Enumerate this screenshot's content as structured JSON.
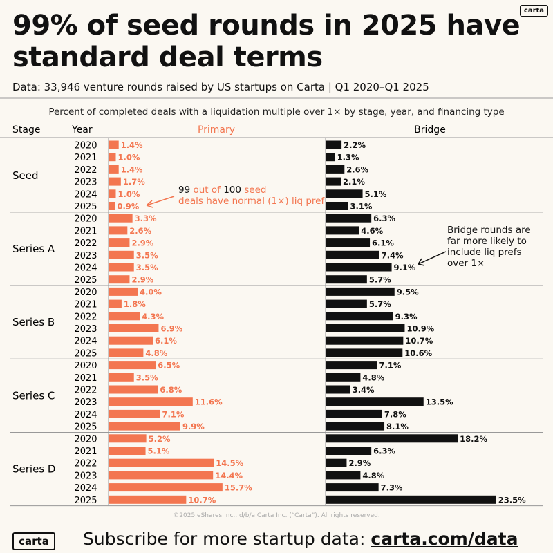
{
  "header": {
    "logo": "carta",
    "title": "99% of seed rounds in 2025 have standard deal terms",
    "subtitle": "Data: 33,946 venture rounds raised by US startups on Carta | Q1 2020–Q1 2025"
  },
  "colors": {
    "primary": "#f37650",
    "bridge": "#111111",
    "background": "#fbf8f2"
  },
  "chart_data": {
    "type": "bar",
    "title": "Percent of completed deals with a liquidation multiple over 1× by stage, year, and financing type",
    "column_headers": {
      "stage": "Stage",
      "year": "Year"
    },
    "unit": "%",
    "series": [
      {
        "name": "Primary",
        "values": [
          1.4,
          1.0,
          1.4,
          1.7,
          1.0,
          0.9,
          3.3,
          2.6,
          2.9,
          3.5,
          3.5,
          2.9,
          4.0,
          1.8,
          4.3,
          6.9,
          6.1,
          4.8,
          6.5,
          3.5,
          6.8,
          11.6,
          7.1,
          9.9,
          5.2,
          5.1,
          14.5,
          14.4,
          15.7,
          10.7
        ]
      },
      {
        "name": "Bridge",
        "values": [
          2.2,
          1.3,
          2.6,
          2.1,
          5.1,
          3.1,
          6.3,
          4.6,
          6.1,
          7.4,
          9.1,
          5.7,
          9.5,
          5.7,
          9.3,
          10.9,
          10.7,
          10.6,
          7.1,
          4.8,
          3.4,
          13.5,
          7.8,
          8.1,
          18.2,
          6.3,
          2.9,
          4.8,
          7.3,
          23.5
        ]
      }
    ],
    "groups": [
      {
        "stage": "Seed",
        "years": [
          "2020",
          "2021",
          "2022",
          "2023",
          "2024",
          "2025"
        ]
      },
      {
        "stage": "Series A",
        "years": [
          "2020",
          "2021",
          "2022",
          "2023",
          "2024",
          "2025"
        ]
      },
      {
        "stage": "Series B",
        "years": [
          "2020",
          "2021",
          "2022",
          "2023",
          "2024",
          "2025"
        ]
      },
      {
        "stage": "Series C",
        "years": [
          "2020",
          "2021",
          "2022",
          "2023",
          "2024",
          "2025"
        ]
      },
      {
        "stage": "Series D",
        "years": [
          "2020",
          "2021",
          "2022",
          "2023",
          "2024",
          "2025"
        ]
      }
    ],
    "annotations": [
      {
        "text": "99 out of 100 seed deals have normal (1×) liq pref",
        "target": "Primary, Seed, 2025"
      },
      {
        "text": "Bridge rounds are far more likely to include liq prefs over 1×",
        "target": "Bridge, Series A, 2024"
      }
    ],
    "copyright": "©2025 eShares Inc., d/b/a Carta Inc. (“Carta”). All rights reserved."
  },
  "footer": {
    "logo": "carta",
    "cta": "Subscribe for more startup data: ",
    "link": "carta.com/data"
  }
}
